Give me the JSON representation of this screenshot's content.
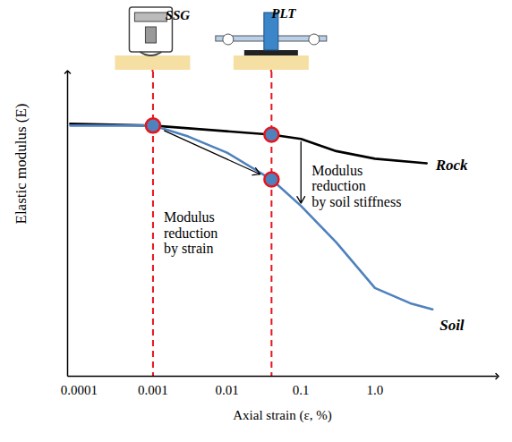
{
  "chart_data": {
    "type": "line",
    "xlabel": "Axial strain (ε, %)",
    "ylabel": "Elastic modulus (E)",
    "log": "x",
    "grid": false,
    "tick_labels": "x",
    "xlim": [
      7e-05,
      45
    ],
    "ylim": [
      0,
      100
    ],
    "xticks": [
      0.0001,
      0.001,
      0.01,
      0.1,
      {
        "value": 1,
        "label": "1.0"
      }
    ],
    "yticks": [],
    "series": [
      {
        "name": "Rock",
        "color": "#000000",
        "x": [
          7.6e-05,
          0.001,
          0.04,
          0.1,
          0.3,
          1,
          5
        ],
        "values": [
          83,
          82.4,
          79.4,
          78,
          74,
          71.5,
          70
        ]
      },
      {
        "name": "Soil",
        "color": "#4f81bd",
        "x": [
          7.6e-05,
          0.001,
          0.003,
          0.01,
          0.04,
          0.1,
          0.3,
          1,
          3,
          6
        ],
        "values": [
          82.4,
          82.4,
          78.8,
          73.5,
          64.7,
          56,
          44,
          29,
          24,
          22
        ]
      }
    ],
    "reference_lines": {
      "x": [
        0.001,
        0.04
      ],
      "labels": [
        "SSG",
        "PLT"
      ],
      "color": "#e8141c",
      "line_style": "dashed"
    },
    "highlight_points": {
      "x": [
        0.001,
        0.04,
        0.04
      ],
      "y": [
        82.4,
        79.4,
        64.7
      ],
      "color": "#e8141c"
    },
    "annotations": [
      "Modulus\nreduction\nby strain",
      "Modulus\nreduction\nby soil stiffness"
    ]
  }
}
